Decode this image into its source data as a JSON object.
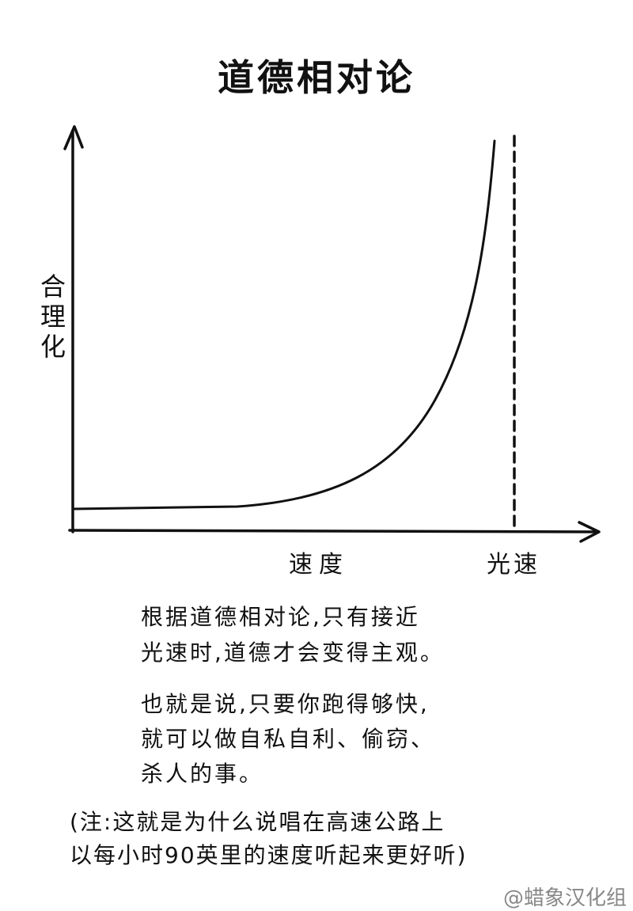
{
  "title": "道德相对论",
  "y_axis_label": "合理化",
  "x_axis_label": "速度",
  "limit_label": "光速",
  "paragraphs": [
    [
      "根据道德相对论,只有接近",
      "光速时,道德才会变得主观。"
    ],
    [
      "也就是说,只要你跑得够快,",
      "就可以做自私自利、偷窃、",
      "杀人的事。"
    ]
  ],
  "note": [
    "(注:这就是为什么说唱在高速公路上",
    "以每小时90英里的速度听起来更好听)"
  ],
  "watermark": "@蜡象汉化组"
}
